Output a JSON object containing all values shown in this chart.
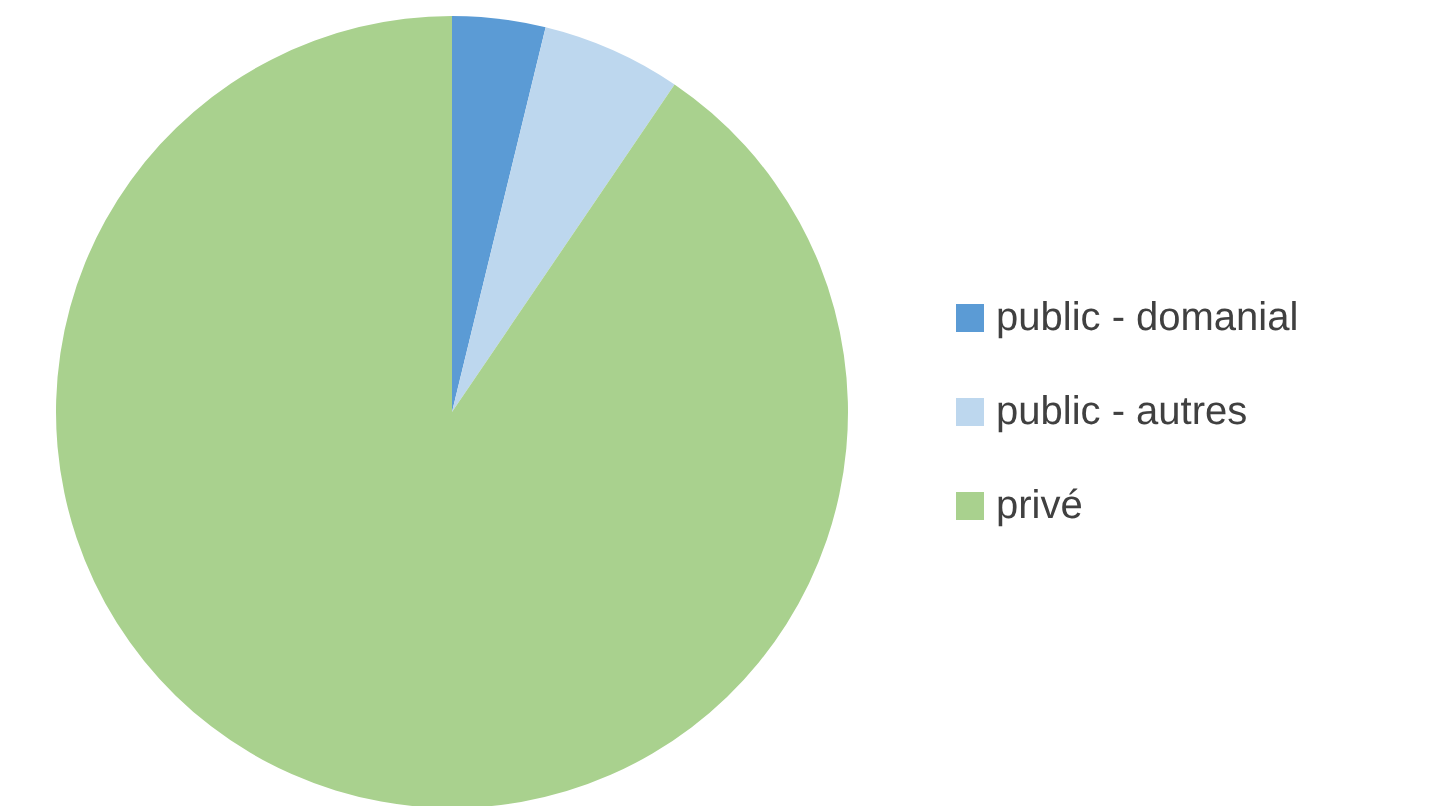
{
  "chart_data": {
    "type": "pie",
    "categories": [
      "public - domanial",
      "public - autres",
      "privé"
    ],
    "values": [
      3.8,
      5.7,
      90.5
    ],
    "colors": [
      "#5b9bd5",
      "#bdd7ee",
      "#a9d18e"
    ],
    "legend": "right"
  }
}
